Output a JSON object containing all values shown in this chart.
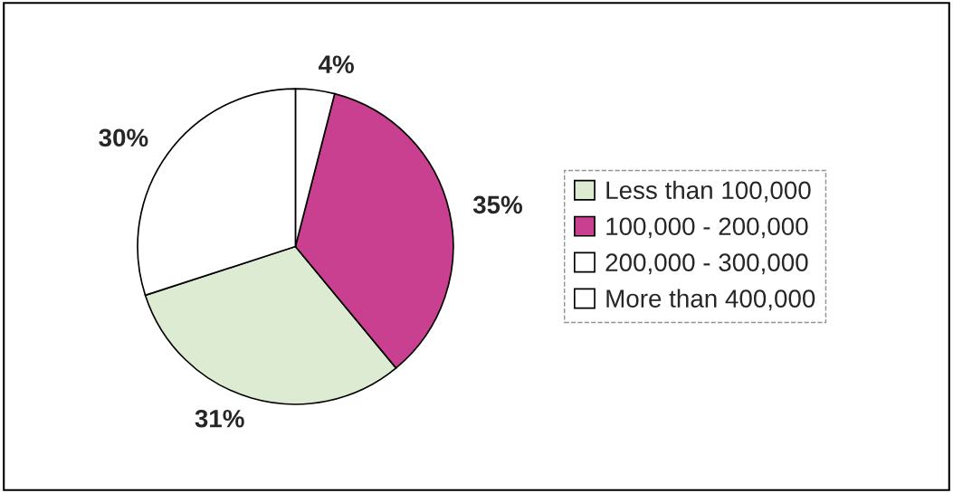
{
  "chart_data": {
    "type": "pie",
    "categories": [
      "Less than 100,000",
      "100,000 - 200,000",
      "200,000 - 300,000",
      "More than 400,000"
    ],
    "values": [
      31,
      35,
      4,
      30
    ],
    "value_labels": [
      "31%",
      "35%",
      "4%",
      "30%"
    ],
    "colors": [
      "#dcebd2",
      "#c8408f",
      "#ffffff",
      "#ffffff"
    ],
    "legend": "right"
  }
}
